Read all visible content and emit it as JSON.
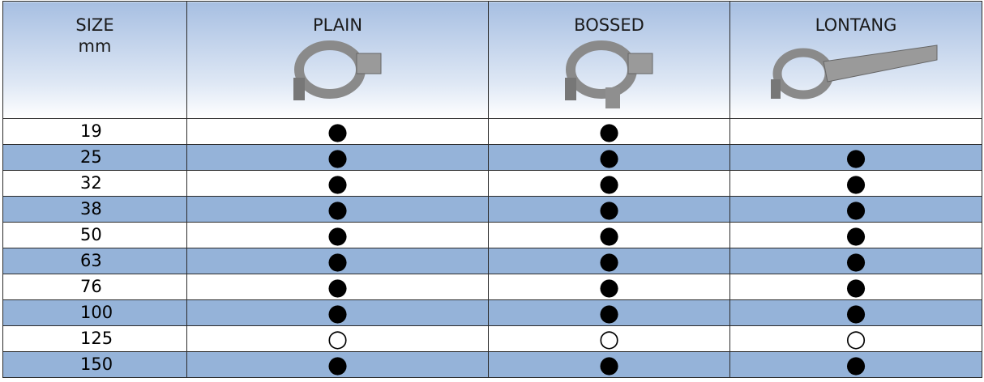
{
  "table": {
    "header": [
      [
        "SIZE",
        "mm"
      ],
      "PLAIN",
      "BOSSED",
      "LONTANG"
    ],
    "rows": [
      [
        "19",
        "●",
        "●",
        null
      ],
      [
        "25",
        "●",
        "●",
        "●"
      ],
      [
        "32",
        "●",
        "●",
        "●"
      ],
      [
        "38",
        "●",
        "●",
        "●"
      ],
      [
        "50",
        "●",
        "●",
        "●"
      ],
      [
        "63",
        "●",
        "●",
        "●"
      ],
      [
        "76",
        "●",
        "●",
        "●"
      ],
      [
        "100",
        "●",
        "●",
        "●"
      ],
      [
        "125",
        "○",
        "○",
        "○"
      ],
      [
        "150",
        "●",
        "●",
        "●"
      ]
    ]
  }
}
